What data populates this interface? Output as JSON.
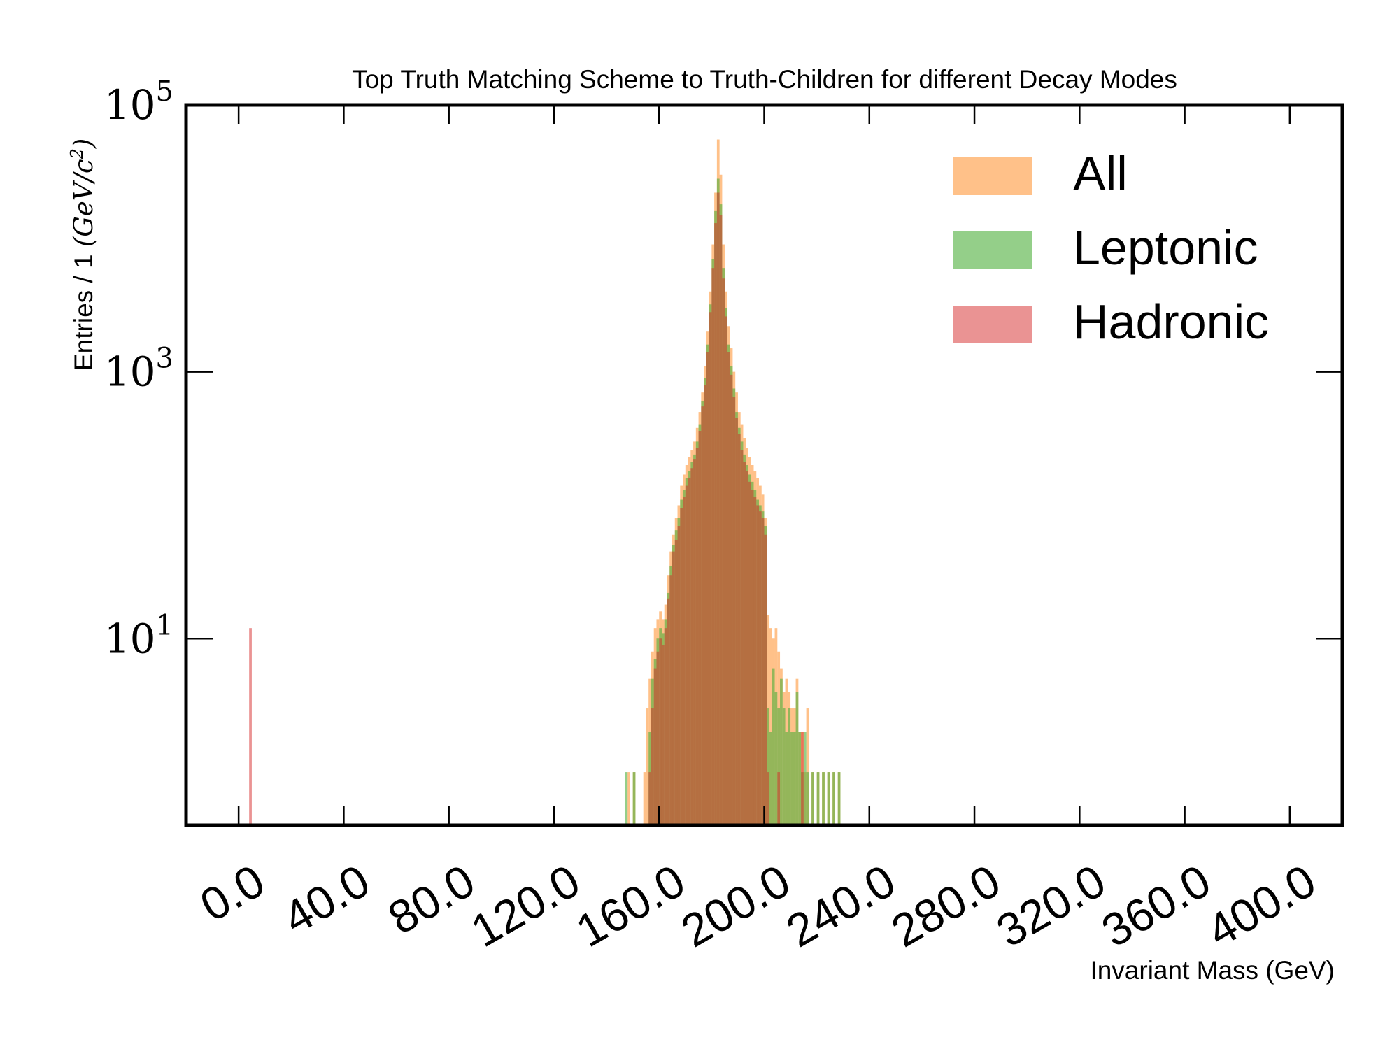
{
  "chart_data": {
    "type": "bar",
    "title": "Top Truth Matching Scheme to Truth-Children for different Decay Modes",
    "xlabel": "Invariant Mass (GeV)",
    "ylabel": "Entries / 1 (GeV/c²)",
    "ylabel_main": "Entries / 1 ",
    "ylabel_unit": "(GeV/c",
    "ylabel_unit_exp": "2",
    "ylabel_unit_close": ")",
    "xscale": "linear",
    "yscale": "log",
    "xlim": [
      -20,
      420
    ],
    "ylim": [
      0.4,
      100000
    ],
    "xticks": [
      0,
      40,
      80,
      120,
      160,
      200,
      240,
      280,
      320,
      360,
      400
    ],
    "xtick_labels": [
      "0.0",
      "40.0",
      "80.0",
      "120.0",
      "160.0",
      "200.0",
      "240.0",
      "280.0",
      "320.0",
      "360.0",
      "400.0"
    ],
    "yticks": [
      10,
      1000,
      100000
    ],
    "ytick_labels": [
      {
        "base": "10",
        "exp": "1"
      },
      {
        "base": "10",
        "exp": "3"
      },
      {
        "base": "10",
        "exp": "5"
      }
    ],
    "grid": false,
    "legend_position": "top-right",
    "bin_width": 1,
    "series": [
      {
        "name": "All",
        "color": "#ffa04a",
        "opacity": 0.65,
        "x": [
          148,
          150,
          154,
          155,
          156,
          157,
          158,
          159,
          160,
          161,
          162,
          163,
          164,
          165,
          166,
          167,
          168,
          169,
          170,
          171,
          172,
          173,
          174,
          175,
          176,
          177,
          178,
          179,
          180,
          181,
          182,
          183,
          184,
          185,
          186,
          187,
          188,
          189,
          190,
          191,
          192,
          193,
          194,
          195,
          196,
          197,
          198,
          199,
          200,
          201,
          202,
          203,
          204,
          205,
          206,
          207,
          208,
          209,
          210,
          211,
          212,
          213,
          214,
          215,
          216,
          218,
          220,
          222,
          224,
          226,
          228
        ],
        "values": [
          1,
          1,
          1,
          3,
          5,
          8,
          12,
          14,
          16,
          14,
          18,
          30,
          45,
          60,
          80,
          100,
          140,
          170,
          200,
          230,
          260,
          300,
          380,
          500,
          700,
          1100,
          2000,
          4000,
          9000,
          22000,
          55000,
          30000,
          9000,
          4000,
          2200,
          1500,
          1000,
          700,
          500,
          400,
          320,
          270,
          230,
          200,
          180,
          160,
          140,
          120,
          80,
          15,
          12,
          10,
          12,
          8,
          6,
          4,
          5,
          4,
          3,
          3,
          5,
          2,
          2,
          1,
          3,
          1,
          1,
          1,
          1,
          1,
          1
        ]
      },
      {
        "name": "Leptonic",
        "color": "#4caf3a",
        "opacity": 0.6,
        "x": [
          147,
          150,
          156,
          157,
          158,
          159,
          160,
          161,
          162,
          163,
          164,
          165,
          166,
          167,
          168,
          169,
          170,
          171,
          172,
          173,
          174,
          175,
          176,
          177,
          178,
          179,
          180,
          181,
          182,
          183,
          184,
          185,
          186,
          187,
          188,
          189,
          190,
          191,
          192,
          193,
          194,
          195,
          196,
          197,
          198,
          199,
          200,
          201,
          202,
          203,
          204,
          205,
          206,
          207,
          208,
          209,
          210,
          211,
          212,
          213,
          214,
          215,
          216,
          218,
          220,
          222,
          224,
          226,
          228
        ],
        "values": [
          1,
          1,
          2,
          5,
          7,
          10,
          12,
          11,
          14,
          22,
          35,
          50,
          65,
          80,
          110,
          130,
          160,
          180,
          210,
          240,
          300,
          400,
          600,
          900,
          1600,
          3200,
          7000,
          16000,
          28000,
          18000,
          6000,
          3000,
          1600,
          1100,
          750,
          500,
          380,
          300,
          240,
          200,
          170,
          150,
          130,
          110,
          100,
          90,
          70,
          3,
          2,
          6,
          4,
          3,
          5,
          3,
          2,
          3,
          2,
          2,
          4,
          2,
          1,
          2,
          1,
          1,
          1,
          1,
          1,
          1,
          1
        ]
      },
      {
        "name": "Hadronic",
        "color": "#d62728",
        "opacity": 0.5,
        "x": [
          4,
          156,
          157,
          158,
          159,
          160,
          161,
          162,
          163,
          164,
          165,
          166,
          167,
          168,
          169,
          170,
          171,
          172,
          173,
          174,
          175,
          176,
          177,
          178,
          179,
          180,
          181,
          182,
          183,
          184,
          185,
          186,
          187,
          188,
          189,
          190,
          191,
          192,
          193,
          194,
          195,
          196,
          197,
          198,
          199,
          200,
          201,
          205,
          214
        ],
        "values": [
          12,
          1,
          3,
          6,
          8,
          10,
          9,
          12,
          20,
          30,
          45,
          55,
          70,
          95,
          115,
          140,
          160,
          190,
          220,
          270,
          360,
          550,
          800,
          1400,
          2800,
          6000,
          13000,
          22000,
          15000,
          5000,
          2600,
          1400,
          950,
          650,
          450,
          340,
          260,
          210,
          180,
          150,
          130,
          115,
          100,
          90,
          80,
          60,
          1,
          1,
          2
        ]
      }
    ],
    "legend": [
      {
        "label": "All",
        "color": "#ffa04a",
        "opacity": 0.65
      },
      {
        "label": "Leptonic",
        "color": "#4caf3a",
        "opacity": 0.6
      },
      {
        "label": "Hadronic",
        "color": "#d62728",
        "opacity": 0.5
      }
    ]
  }
}
